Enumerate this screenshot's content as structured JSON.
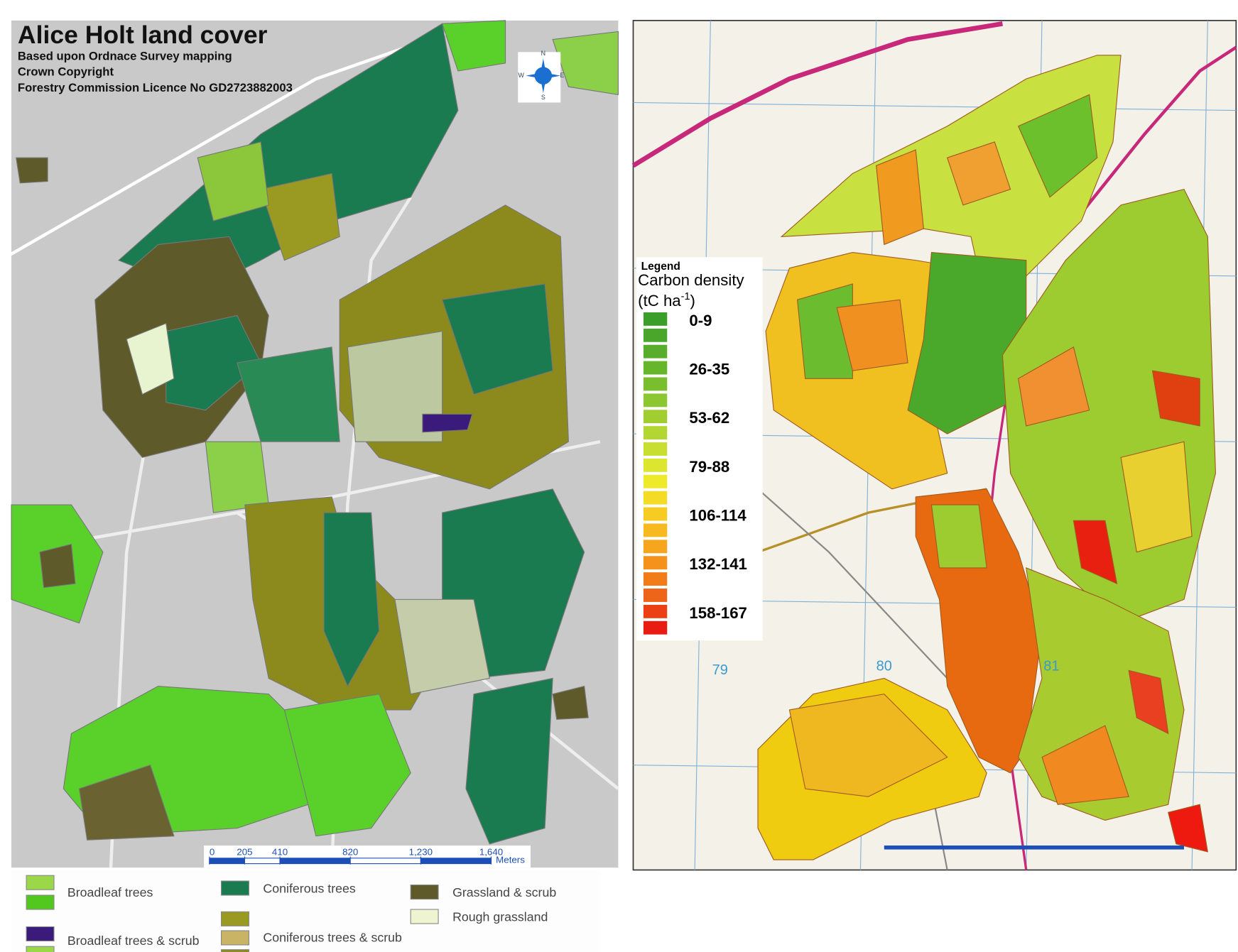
{
  "left_map": {
    "title": "Alice Holt land cover",
    "credits": [
      "Based upon Ordnace Survey mapping",
      "Crown Copyright",
      "Forestry Commission Licence No GD2723882003"
    ],
    "compass": [
      "N",
      "W",
      "E",
      "S"
    ],
    "scale_bar": {
      "ticks": [
        0,
        205,
        410,
        820,
        {
          "value": 1230,
          "label": "1,230"
        },
        {
          "value": 1640,
          "label": "1,640"
        }
      ],
      "unit": "Meters"
    },
    "legend": [
      "Broadleaf trees",
      "Coniferous trees",
      "Grassland & scrub",
      "Rough grassland",
      "Broadleaf trees & scrub",
      "Coniferous trees & scrub"
    ]
  },
  "right_map": {
    "legend": {
      "heading": "Legend",
      "title": "Carbon density",
      "unit": [
        "(tC ha",
        "-1",
        ")"
      ],
      "classes": [
        "0-9",
        "26-35",
        "53-62",
        "79-88",
        "106-114",
        "132-141",
        "158-167"
      ],
      "swatch_colors": [
        "#3c9e2a",
        "#4aa62a",
        "#58ae2c",
        "#66b62c",
        "#78be2e",
        "#8cc630",
        "#a0ce30",
        "#b4d632",
        "#c8de30",
        "#dce62e",
        "#eeea2a",
        "#f4dc26",
        "#f6cc22",
        "#f6ba20",
        "#f6a61e",
        "#f4921c",
        "#f27c1a",
        "#ee6418",
        "#ea4014",
        "#e81c12"
      ]
    },
    "grid_labels": [
      "79",
      "80",
      "81"
    ]
  }
}
